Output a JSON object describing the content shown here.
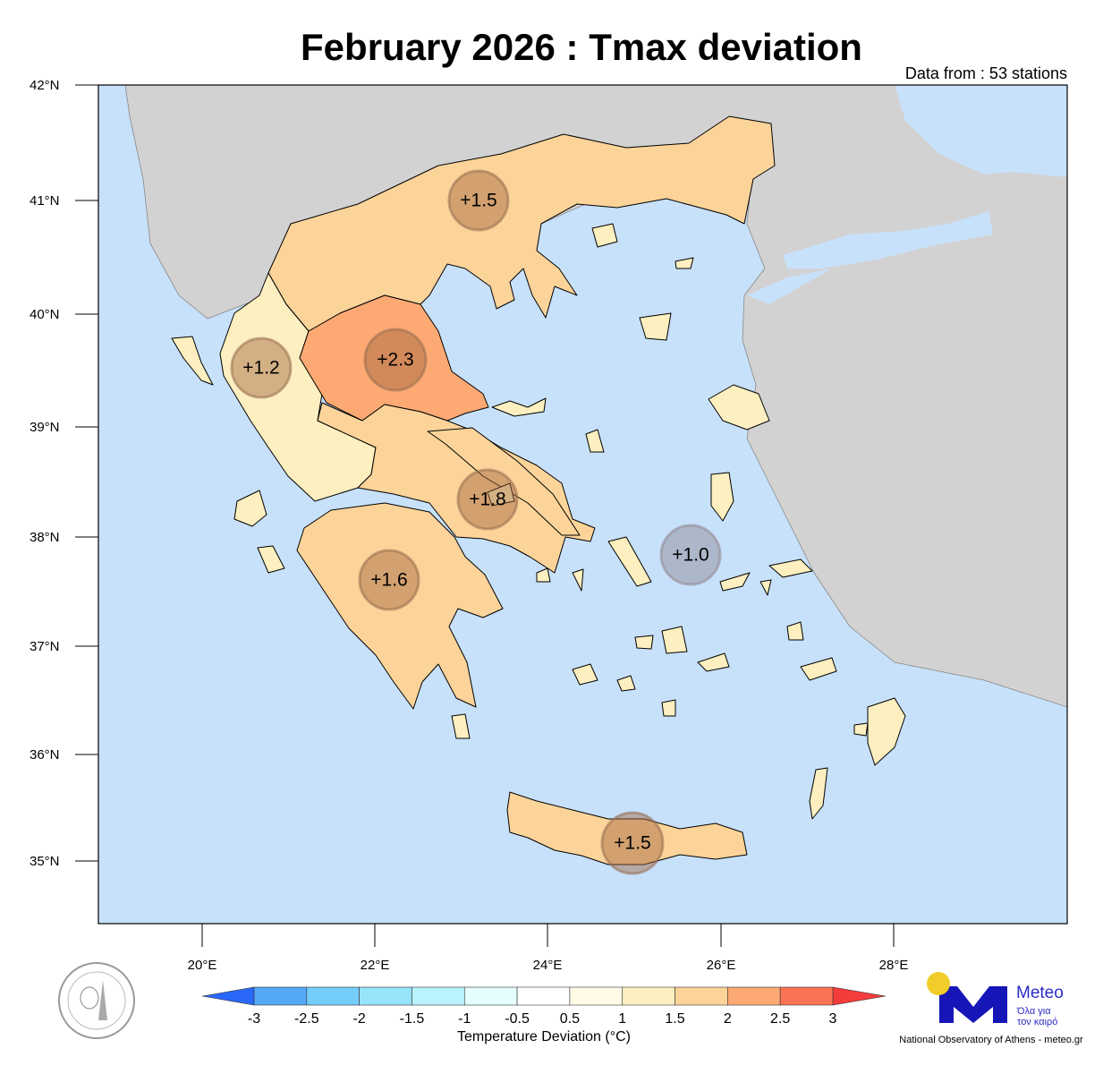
{
  "title": "February 2026 : Tmax deviation",
  "data_note": "Data from : 53 stations",
  "lat_labels": [
    "42°N",
    "41°N",
    "40°N",
    "39°N",
    "38°N",
    "37°N",
    "36°N",
    "35°N"
  ],
  "lon_labels": [
    "20°E",
    "22°E",
    "24°E",
    "26°E",
    "28°E"
  ],
  "colors": {
    "sea": "#c8e1fb",
    "neighbor_land": "#d2d2d2",
    "dev_1_to_1_5": "#fdefbf",
    "dev_1_5_to_2": "#fcd49a",
    "dev_2_to_2_5": "#fca974"
  },
  "stations": [
    {
      "value": "+1.5"
    },
    {
      "value": "+2.3"
    },
    {
      "value": "+1.2"
    },
    {
      "value": "+1.8"
    },
    {
      "value": "+1.6"
    },
    {
      "value": "+1.0"
    },
    {
      "value": "+1.5"
    }
  ],
  "colorbar": {
    "label": "Temperature Deviation (°C)",
    "ticks": [
      "-3",
      "-2.5",
      "-2",
      "-1.5",
      "-1",
      "-0.5",
      "0.5",
      "1",
      "1.5",
      "2",
      "2.5",
      "3"
    ],
    "low_color": "#2a68f7",
    "high_color": "#f53c3c",
    "colors": [
      "#55a8f8",
      "#74cdfb",
      "#97e4fb",
      "#baf3fb",
      "#e4fdfd",
      "#ffffff",
      "#fffbe6",
      "#fdefbf",
      "#fcd49a",
      "#fca974",
      "#fa7454"
    ]
  },
  "logo": {
    "seal_text": "National Observatory of Athens",
    "brand": "Meteo",
    "tagline_1": "Όλα για",
    "tagline_2": "τον καιρό",
    "credit": "National Observatory of Athens - meteo.gr"
  }
}
